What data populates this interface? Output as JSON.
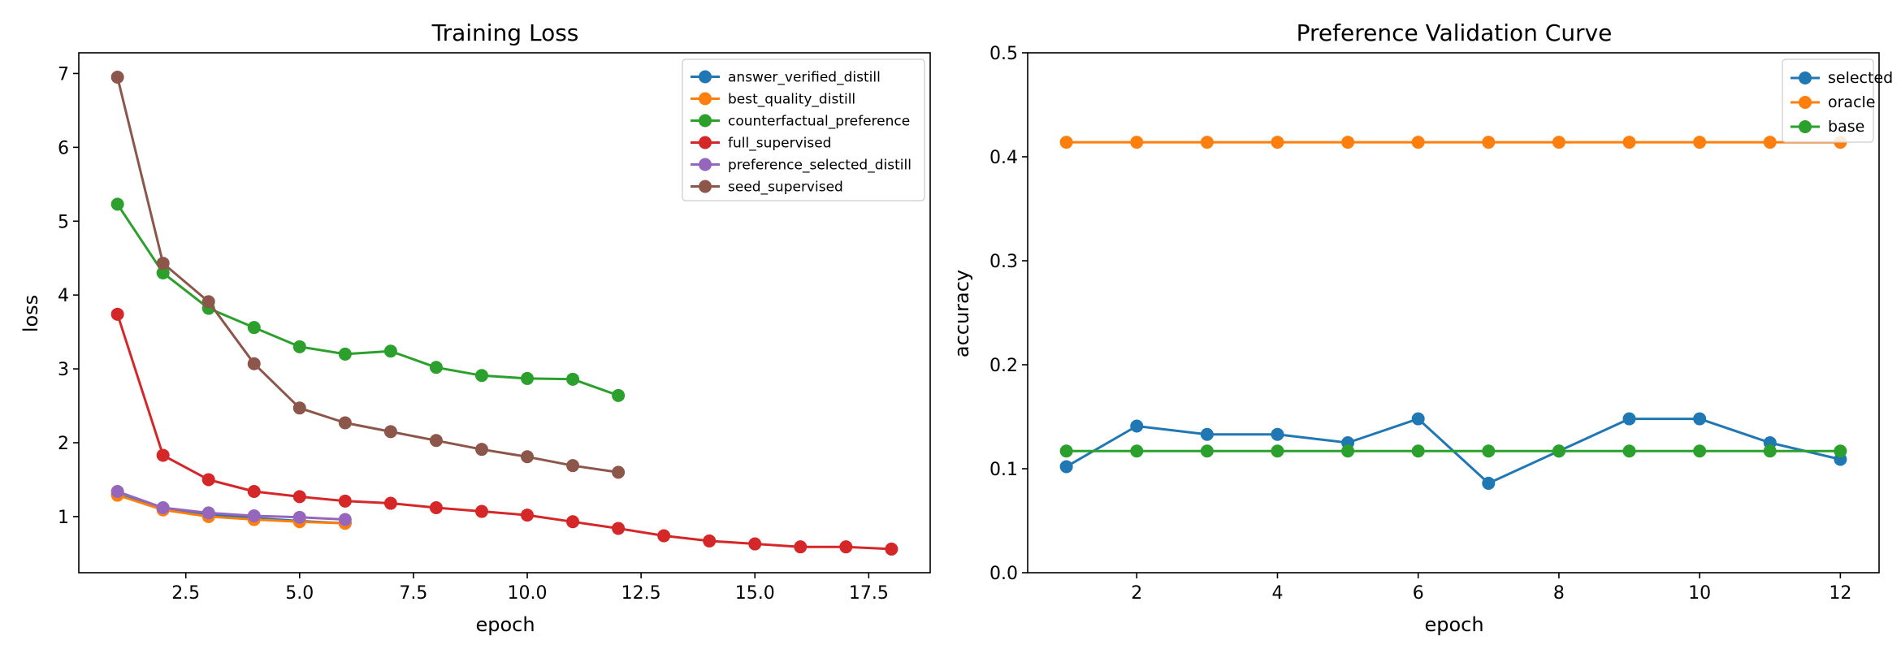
{
  "colors": {
    "blue": "#1f77b4",
    "orange": "#ff7f0e",
    "green": "#2ca02c",
    "red": "#d62728",
    "purple": "#9467bd",
    "brown": "#8c564b"
  },
  "chart_data": [
    {
      "type": "line",
      "title": "Training Loss",
      "xlabel": "epoch",
      "ylabel": "loss",
      "xlim": [
        0.15,
        18.85
      ],
      "ylim": [
        0.24,
        7.28
      ],
      "xticks": [
        2.5,
        5.0,
        7.5,
        10.0,
        12.5,
        15.0,
        17.5
      ],
      "xtick_labels": [
        "2.5",
        "5.0",
        "7.5",
        "10.0",
        "12.5",
        "15.0",
        "17.5"
      ],
      "yticks": [
        1,
        2,
        3,
        4,
        5,
        6,
        7
      ],
      "ytick_labels": [
        "1",
        "2",
        "3",
        "4",
        "5",
        "6",
        "7"
      ],
      "legend_position": "top-right",
      "series": [
        {
          "name": "answer_verified_distill",
          "color": "#1f77b4",
          "x": [
            1,
            2,
            3,
            4,
            5,
            6
          ],
          "y": [
            1.3,
            1.1,
            1.02,
            0.98,
            0.94,
            0.91
          ]
        },
        {
          "name": "best_quality_distill",
          "color": "#ff7f0e",
          "x": [
            1,
            2,
            3,
            4,
            5,
            6
          ],
          "y": [
            1.29,
            1.09,
            1.0,
            0.96,
            0.93,
            0.91
          ]
        },
        {
          "name": "counterfactual_preference",
          "color": "#2ca02c",
          "x": [
            1,
            2,
            3,
            4,
            5,
            6,
            7,
            8,
            9,
            10,
            11,
            12
          ],
          "y": [
            5.23,
            4.3,
            3.82,
            3.56,
            3.3,
            3.2,
            3.24,
            3.02,
            2.91,
            2.87,
            2.86,
            2.64
          ]
        },
        {
          "name": "full_supervised",
          "color": "#d62728",
          "x": [
            1,
            2,
            3,
            4,
            5,
            6,
            7,
            8,
            9,
            10,
            11,
            12,
            13,
            14,
            15,
            16,
            17,
            18
          ],
          "y": [
            3.74,
            1.83,
            1.5,
            1.34,
            1.27,
            1.21,
            1.18,
            1.12,
            1.07,
            1.02,
            0.93,
            0.84,
            0.74,
            0.67,
            0.63,
            0.59,
            0.59,
            0.56
          ]
        },
        {
          "name": "preference_selected_distill",
          "color": "#9467bd",
          "x": [
            1,
            2,
            3,
            4,
            5,
            6
          ],
          "y": [
            1.34,
            1.12,
            1.05,
            1.01,
            0.99,
            0.96
          ]
        },
        {
          "name": "seed_supervised",
          "color": "#8c564b",
          "x": [
            1,
            2,
            3,
            4,
            5,
            6,
            7,
            8,
            9,
            10,
            11,
            12
          ],
          "y": [
            6.95,
            4.43,
            3.91,
            3.07,
            2.47,
            2.27,
            2.15,
            2.03,
            1.91,
            1.81,
            1.69,
            1.6
          ]
        }
      ]
    },
    {
      "type": "line",
      "title": "Preference Validation Curve",
      "xlabel": "epoch",
      "ylabel": "accuracy",
      "xlim": [
        0.45,
        12.55
      ],
      "ylim": [
        0.0,
        0.5
      ],
      "xticks": [
        2,
        4,
        6,
        8,
        10,
        12
      ],
      "xtick_labels": [
        "2",
        "4",
        "6",
        "8",
        "10",
        "12"
      ],
      "yticks": [
        0.0,
        0.1,
        0.2,
        0.3,
        0.4,
        0.5
      ],
      "ytick_labels": [
        "0.0",
        "0.1",
        "0.2",
        "0.3",
        "0.4",
        "0.5"
      ],
      "legend_position": "top-right",
      "series": [
        {
          "name": "selected",
          "color": "#1f77b4",
          "x": [
            1,
            2,
            3,
            4,
            5,
            6,
            7,
            8,
            9,
            10,
            11,
            12
          ],
          "y": [
            0.102,
            0.141,
            0.133,
            0.133,
            0.125,
            0.148,
            0.086,
            0.117,
            0.148,
            0.148,
            0.125,
            0.109
          ]
        },
        {
          "name": "oracle",
          "color": "#ff7f0e",
          "x": [
            1,
            2,
            3,
            4,
            5,
            6,
            7,
            8,
            9,
            10,
            11,
            12
          ],
          "y": [
            0.414,
            0.414,
            0.414,
            0.414,
            0.414,
            0.414,
            0.414,
            0.414,
            0.414,
            0.414,
            0.414,
            0.414
          ]
        },
        {
          "name": "base",
          "color": "#2ca02c",
          "x": [
            1,
            2,
            3,
            4,
            5,
            6,
            7,
            8,
            9,
            10,
            11,
            12
          ],
          "y": [
            0.117,
            0.117,
            0.117,
            0.117,
            0.117,
            0.117,
            0.117,
            0.117,
            0.117,
            0.117,
            0.117,
            0.117
          ]
        }
      ]
    }
  ]
}
